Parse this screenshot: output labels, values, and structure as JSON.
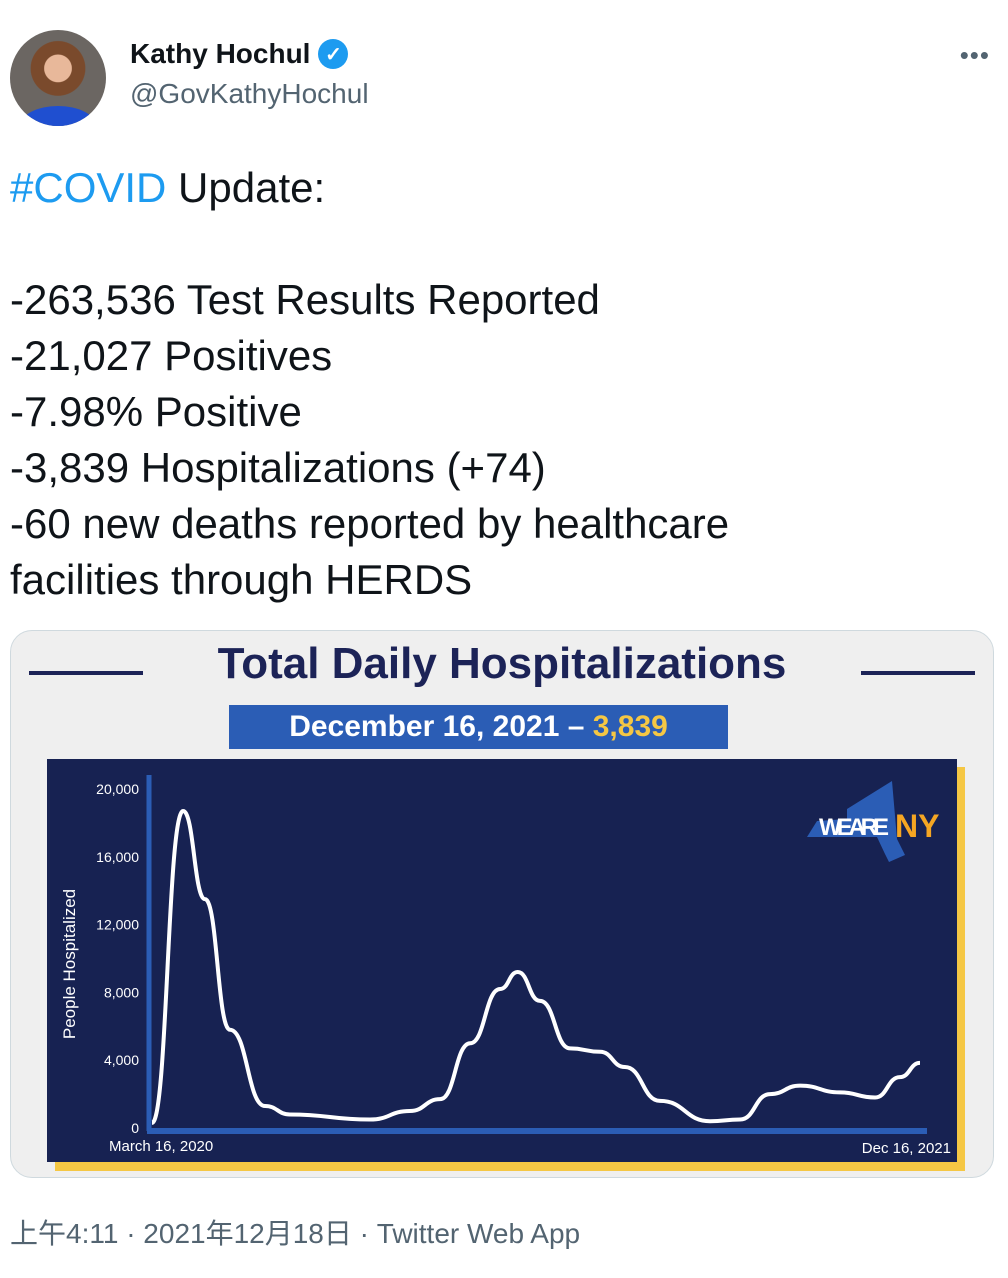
{
  "author": {
    "name": "Kathy Hochul",
    "handle": "@GovKathyHochul",
    "verified": true
  },
  "more_label": "•••",
  "tweet": {
    "hashtag": "#COVID",
    "text_after_hashtag": " Update:\n\n-263,536 Test Results Reported\n-21,027 Positives\n-7.98% Positive\n-3,839 Hospitalizations (+74)\n-60 new deaths reported by healthcare\nfacilities through HERDS"
  },
  "image": {
    "title": "Total Daily Hospitalizations",
    "banner_date": "December 16, 2021 – ",
    "banner_value": "3,839",
    "logo_text_1": "WE ARE ",
    "logo_text_2": "NY"
  },
  "chart_data": {
    "type": "line",
    "title": "Total Daily Hospitalizations",
    "xlabel": "",
    "ylabel": "People Hospitalized",
    "x_tick_labels": [
      "March 16, 2020",
      "Dec 16, 2021"
    ],
    "y_ticks": [
      0,
      4000,
      8000,
      12000,
      16000,
      20000
    ],
    "y_tick_labels": [
      "0",
      "4,000",
      "8,000",
      "12,000",
      "16,000",
      "20,000"
    ],
    "ylim": [
      0,
      20000
    ],
    "x_unit": "months since March 16, 2020",
    "xlim": [
      0,
      21
    ],
    "x": [
      0,
      0.85,
      1.45,
      2.13,
      3.09,
      3.77,
      5.96,
      7.05,
      7.88,
      8.7,
      9.52,
      10.0,
      10.61,
      11.43,
      12.25,
      12.93,
      13.89,
      15.26,
      16.08,
      16.9,
      17.72,
      18.81,
      19.77,
      20.45,
      21
    ],
    "y": [
      300,
      18700,
      13500,
      5800,
      1300,
      800,
      500,
      1000,
      1700,
      5000,
      8200,
      9200,
      7500,
      4700,
      4500,
      3600,
      1600,
      400,
      500,
      2000,
      2500,
      2100,
      1800,
      3000,
      3839
    ],
    "grid": false,
    "colors": {
      "line": "#ffffff",
      "background": "#172252",
      "axis": "#2b5db5"
    }
  },
  "footer": "上午4:11 · 2021年12月18日 · Twitter Web App"
}
